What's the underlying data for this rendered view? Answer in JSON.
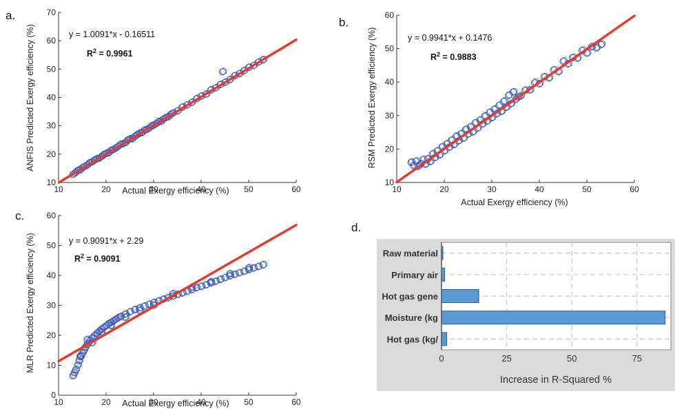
{
  "chart_data": [
    {
      "id": "a",
      "type": "scatter",
      "panel_label": "a.",
      "xlabel": "Actual Exergy efficiency (%)",
      "ylabel": "ANFIS Predicted Exergy efficiency (%)",
      "xlim": [
        10,
        60
      ],
      "ylim": [
        10,
        70
      ],
      "xticks": [
        10,
        20,
        30,
        40,
        50,
        60
      ],
      "yticks": [
        10,
        20,
        30,
        40,
        50,
        60,
        70
      ],
      "fit": {
        "slope": 1.0091,
        "intercept": -0.16511
      },
      "equation": "y = 1.0091*x - 0.16511",
      "r2_prefix": "R",
      "r2_exp": "2",
      "r2_value": " = 0.9961",
      "points": [
        [
          13,
          12.8
        ],
        [
          13.5,
          13.4
        ],
        [
          14,
          14.2
        ],
        [
          14.5,
          14.4
        ],
        [
          15,
          15.2
        ],
        [
          15.5,
          15.6
        ],
        [
          16,
          16.1
        ],
        [
          16.5,
          16.9
        ],
        [
          17,
          17.2
        ],
        [
          17.5,
          17.8
        ],
        [
          18,
          18.3
        ],
        [
          18.5,
          18.5
        ],
        [
          19,
          19.1
        ],
        [
          19.5,
          19.8
        ],
        [
          20,
          20.2
        ],
        [
          20.5,
          20.4
        ],
        [
          21,
          21.3
        ],
        [
          21.5,
          21.6
        ],
        [
          22,
          22.1
        ],
        [
          22.5,
          22.7
        ],
        [
          23,
          23.4
        ],
        [
          23.5,
          23.6
        ],
        [
          24,
          24.0
        ],
        [
          24.5,
          24.9
        ],
        [
          25,
          25.3
        ],
        [
          25.5,
          25.4
        ],
        [
          26,
          26.2
        ],
        [
          26.5,
          26.8
        ],
        [
          27,
          27.3
        ],
        [
          27.5,
          27.5
        ],
        [
          28,
          28.4
        ],
        [
          28.5,
          28.6
        ],
        [
          29,
          29.1
        ],
        [
          29.5,
          29.9
        ],
        [
          30,
          30.2
        ],
        [
          30.5,
          30.7
        ],
        [
          31,
          31.4
        ],
        [
          31.5,
          31.5
        ],
        [
          32,
          32.3
        ],
        [
          32.5,
          32.8
        ],
        [
          33,
          33.1
        ],
        [
          33.5,
          33.9
        ],
        [
          34,
          34.4
        ],
        [
          35,
          35.2
        ],
        [
          36,
          36.5
        ],
        [
          37,
          37.3
        ],
        [
          38,
          38.2
        ],
        [
          39,
          39.5
        ],
        [
          40,
          40.4
        ],
        [
          41,
          41.1
        ],
        [
          42,
          42.6
        ],
        [
          43,
          43.3
        ],
        [
          44,
          44.5
        ],
        [
          44.5,
          49
        ],
        [
          45,
          45.3
        ],
        [
          46,
          46.2
        ],
        [
          47,
          47.6
        ],
        [
          48,
          48.3
        ],
        [
          49,
          49.4
        ],
        [
          50,
          50.6
        ],
        [
          51,
          51.2
        ],
        [
          52,
          52.4
        ],
        [
          53,
          53.2
        ]
      ]
    },
    {
      "id": "b",
      "type": "scatter",
      "panel_label": "b.",
      "xlabel": "Actual Exergy efficiency (%)",
      "ylabel": "RSM Predicted Exergy efficiency (%)",
      "xlim": [
        10,
        60
      ],
      "ylim": [
        10,
        60
      ],
      "xticks": [
        10,
        20,
        30,
        40,
        50,
        60
      ],
      "yticks": [
        10,
        20,
        30,
        40,
        50,
        60
      ],
      "fit": {
        "slope": 0.9941,
        "intercept": 0.1476
      },
      "equation": "y = 0.9941*x + 0.1476",
      "r2_prefix": "R",
      "r2_exp": "2",
      "r2_value": " = 0.9883",
      "points": [
        [
          13,
          16
        ],
        [
          13.5,
          15
        ],
        [
          14,
          16.3
        ],
        [
          14.5,
          14.8
        ],
        [
          15,
          15.5
        ],
        [
          15.5,
          16.8
        ],
        [
          16,
          15.4
        ],
        [
          16.5,
          17
        ],
        [
          17,
          16.2
        ],
        [
          17.5,
          18.5
        ],
        [
          18,
          17.4
        ],
        [
          18.5,
          19.4
        ],
        [
          19,
          18.2
        ],
        [
          19.5,
          20.6
        ],
        [
          20,
          19.4
        ],
        [
          20.5,
          21.5
        ],
        [
          21,
          20.5
        ],
        [
          21.5,
          22.6
        ],
        [
          22,
          21.3
        ],
        [
          22.5,
          23.8
        ],
        [
          23,
          22.4
        ],
        [
          23.5,
          24.5
        ],
        [
          24,
          23.2
        ],
        [
          24.5,
          25.8
        ],
        [
          25,
          24.4
        ],
        [
          25.5,
          26.6
        ],
        [
          26,
          25.1
        ],
        [
          26.5,
          27.8
        ],
        [
          27,
          26.2
        ],
        [
          27.5,
          28.6
        ],
        [
          28,
          27.4
        ],
        [
          28.5,
          29.8
        ],
        [
          29,
          28.3
        ],
        [
          29.5,
          30.9
        ],
        [
          30,
          29.3
        ],
        [
          30.5,
          31.8
        ],
        [
          31,
          30.5
        ],
        [
          31.5,
          33
        ],
        [
          32,
          31.2
        ],
        [
          32.5,
          34.2
        ],
        [
          33,
          32.4
        ],
        [
          33.5,
          36
        ],
        [
          34,
          33.5
        ],
        [
          34.5,
          37
        ],
        [
          35,
          34.8
        ],
        [
          35.5,
          35.5
        ],
        [
          36,
          35.8
        ],
        [
          37,
          37.5
        ],
        [
          38,
          37.6
        ],
        [
          39,
          39.8
        ],
        [
          40,
          39.5
        ],
        [
          41,
          41.5
        ],
        [
          42,
          41.2
        ],
        [
          43,
          43.6
        ],
        [
          44,
          43.1
        ],
        [
          45,
          46.2
        ],
        [
          46,
          45.4
        ],
        [
          47,
          47.3
        ],
        [
          48,
          47.1
        ],
        [
          49,
          49.4
        ],
        [
          50,
          48.6
        ],
        [
          51,
          50.5
        ],
        [
          52,
          50.2
        ],
        [
          53,
          51.2
        ]
      ]
    },
    {
      "id": "c",
      "type": "scatter",
      "panel_label": "c.",
      "xlabel": "Actual Exergy efficiency (%)",
      "ylabel": "MLR Predicted Exergy efficiency (%)",
      "xlim": [
        10,
        60
      ],
      "ylim": [
        0,
        60
      ],
      "xticks": [
        10,
        20,
        30,
        40,
        50,
        60
      ],
      "yticks": [
        0,
        10,
        20,
        30,
        40,
        50,
        60
      ],
      "fit": {
        "slope": 0.9091,
        "intercept": 2.29
      },
      "equation": "y = 0.9091*x + 2.29",
      "r2_prefix": "R",
      "r2_exp": "2",
      "r2_value": " = 0.9091",
      "points": [
        [
          13,
          6.5
        ],
        [
          13.3,
          7.5
        ],
        [
          13.6,
          8.5
        ],
        [
          14,
          10
        ],
        [
          14.3,
          11.5
        ],
        [
          14.6,
          12.8
        ],
        [
          15,
          14
        ],
        [
          15.3,
          15
        ],
        [
          15.6,
          16
        ],
        [
          16,
          17
        ],
        [
          16.5,
          18
        ],
        [
          17,
          19
        ],
        [
          17.5,
          19.8
        ],
        [
          18,
          20.6
        ],
        [
          18.5,
          21.3
        ],
        [
          19,
          22
        ],
        [
          19.5,
          22.6
        ],
        [
          20,
          23.2
        ],
        [
          20.5,
          23.8
        ],
        [
          21,
          24.3
        ],
        [
          21.5,
          24.8
        ],
        [
          22,
          25.3
        ],
        [
          22.5,
          25.8
        ],
        [
          23,
          26.2
        ],
        [
          24,
          27
        ],
        [
          25,
          27.8
        ],
        [
          26,
          28.5
        ],
        [
          27,
          29.1
        ],
        [
          28,
          29.7
        ],
        [
          29,
          30.3
        ],
        [
          30,
          30.9
        ],
        [
          31,
          31.4
        ],
        [
          32,
          32
        ],
        [
          33,
          32.5
        ],
        [
          34,
          33
        ],
        [
          35,
          33.6
        ],
        [
          36,
          34.1
        ],
        [
          37,
          34.6
        ],
        [
          38,
          35.2
        ],
        [
          39,
          35.8
        ],
        [
          40,
          36.3
        ],
        [
          41,
          36.8
        ],
        [
          42,
          37.4
        ],
        [
          43,
          38
        ],
        [
          44,
          38.6
        ],
        [
          45,
          39.2
        ],
        [
          46,
          39.8
        ],
        [
          47,
          40.3
        ],
        [
          48,
          40.8
        ],
        [
          49,
          41.3
        ],
        [
          50,
          41.9
        ],
        [
          51,
          42.4
        ],
        [
          52,
          42.9
        ],
        [
          53,
          43.5
        ],
        [
          14.5,
          13
        ],
        [
          16,
          18.5
        ],
        [
          17,
          17.5
        ],
        [
          19,
          21
        ],
        [
          21,
          23.2
        ],
        [
          24,
          26
        ],
        [
          27,
          28.3
        ],
        [
          30,
          30
        ],
        [
          34,
          33.8
        ],
        [
          38,
          36
        ],
        [
          42,
          37.8
        ],
        [
          46,
          40.5
        ],
        [
          50,
          42.5
        ]
      ]
    },
    {
      "id": "d",
      "type": "bar",
      "orientation": "horizontal",
      "panel_label": "d.",
      "categories": [
        "Raw material",
        "Primary air",
        "Hot gas gene",
        "Moisture (kg",
        "Hot gas (kg/"
      ],
      "values": [
        0.4,
        1.2,
        14.3,
        85.8,
        2.0
      ],
      "xlabel": "Increase in R-Squared %",
      "xticks": [
        0,
        25,
        50,
        75
      ],
      "xlim": [
        0,
        88
      ]
    }
  ],
  "colors": {
    "marker": "#3355bb",
    "fit_line": "#e8392a",
    "bar_fill": "#5b9bd5",
    "bar_stroke": "#2a5d8c",
    "bar_panel_bg": "#dadada",
    "bar_plot_bg": "#ffffff",
    "bar_grid": "#c8c8c8"
  }
}
